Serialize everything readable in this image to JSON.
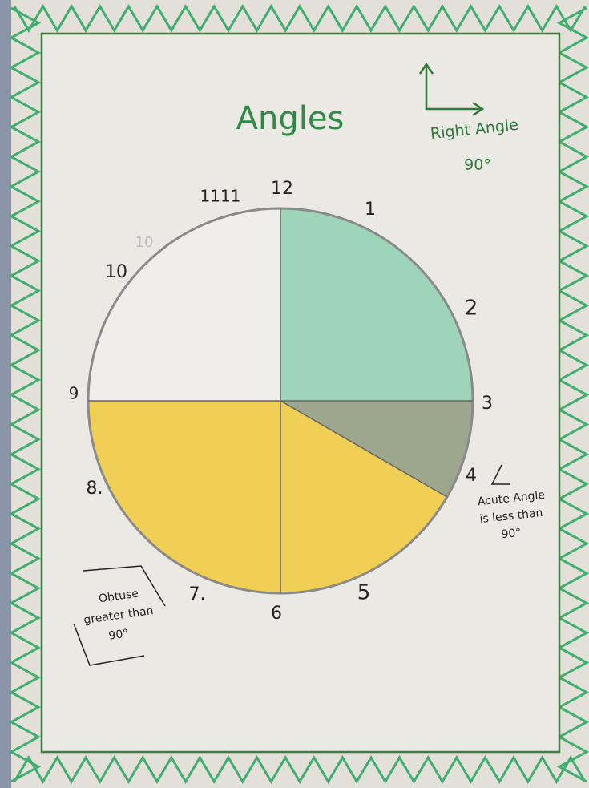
{
  "title": "Angles",
  "right_angle": {
    "label": "Right Angle",
    "degrees": "90°"
  },
  "clock": {
    "numbers": [
      "12",
      "1",
      "2",
      "3",
      "4",
      "5",
      "6",
      "7.",
      "8.",
      "9",
      "10",
      "10",
      "1111"
    ]
  },
  "acute_angle": {
    "lines": [
      "Acute Angle",
      "is less than",
      "90°"
    ]
  },
  "obtuse_angle": {
    "lines": [
      "Obtuse",
      "greater than",
      "90°"
    ]
  }
}
